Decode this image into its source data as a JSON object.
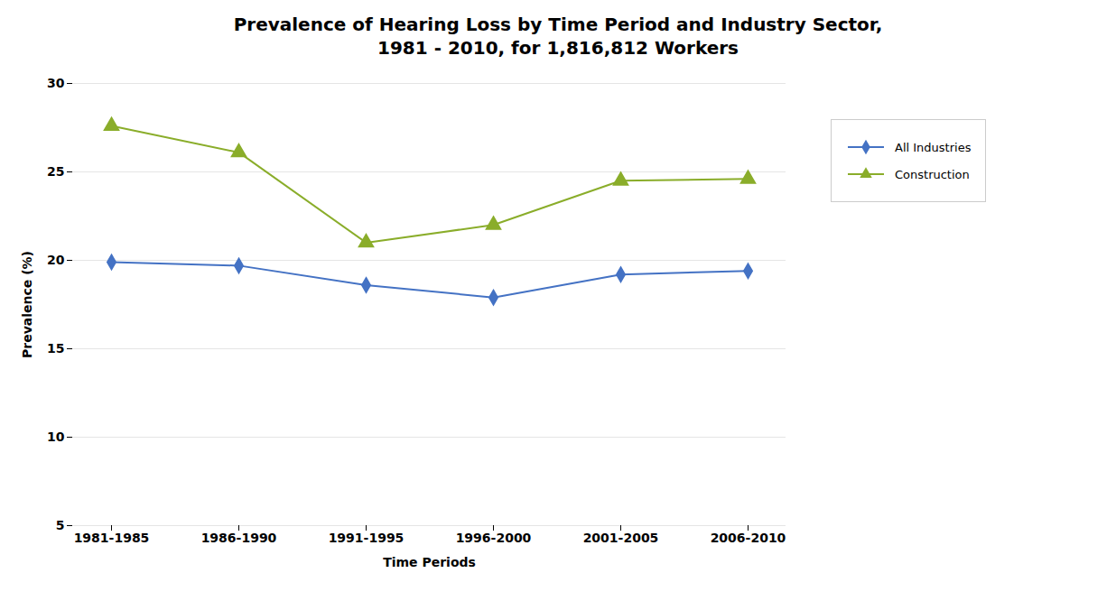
{
  "chart_data": {
    "type": "line",
    "title": "Prevalence of Hearing Loss by Time Period and Industry Sector,\n1981 - 2010, for 1,816,812 Workers",
    "x_label": "Time Periods",
    "y_label": "Prevalence (%)",
    "categories": [
      "1981-1985",
      "1986-1990",
      "1991-1995",
      "1996-2000",
      "2001-2005",
      "2006-2010"
    ],
    "series": [
      {
        "name": "All Industries",
        "color": "#4472C4",
        "marker": "diamond",
        "line_style": "solid",
        "values": [
          19.9,
          19.7,
          18.6,
          17.9,
          19.2,
          19.4
        ]
      },
      {
        "name": "Construction",
        "color": "#8AAD2A",
        "marker": "triangle",
        "line_style": "solid",
        "values": [
          27.6,
          26.1,
          21.0,
          22.0,
          24.5,
          24.6
        ]
      }
    ],
    "ylim": [
      5,
      30
    ],
    "yticks": [
      5,
      10,
      15,
      20,
      25,
      30
    ],
    "grid": true,
    "legend": "right"
  }
}
